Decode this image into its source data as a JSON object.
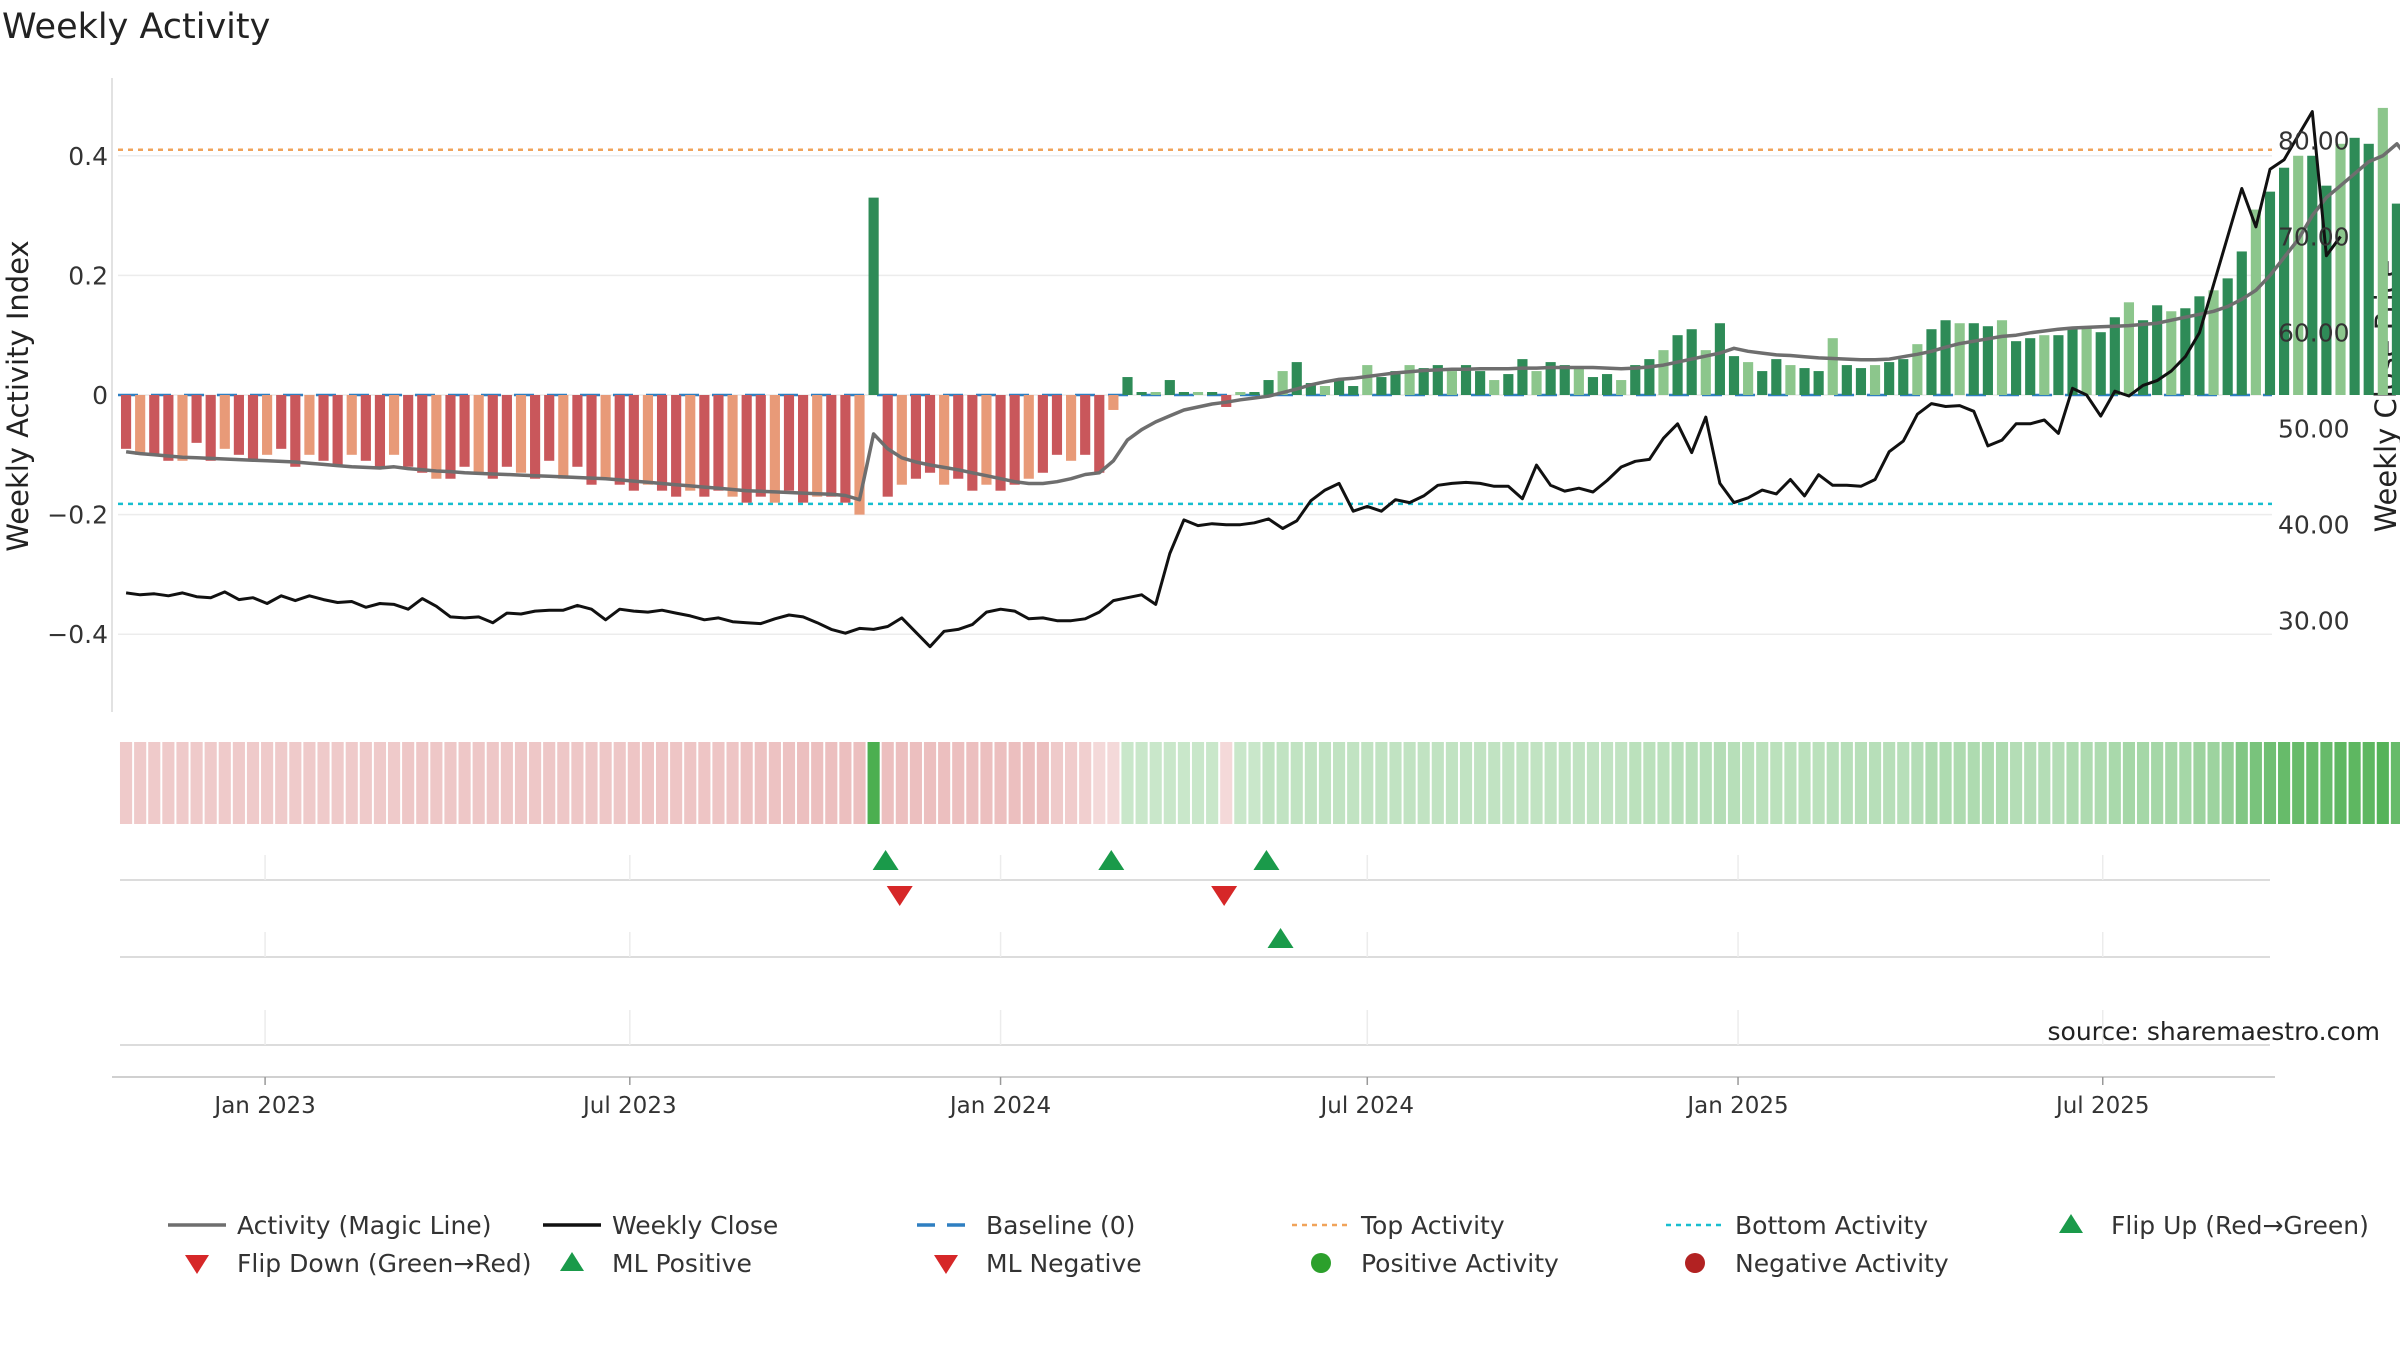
{
  "chart_data": {
    "type": "bar",
    "title": "Weekly Activity",
    "ylabel": "Weekly Activity Index",
    "y2label": "Weekly Close Price",
    "ylim": [
      -0.53,
      0.53
    ],
    "y2lim": [
      20.5,
      86.5
    ],
    "yticks": [
      {
        "v": 0.4,
        "label": "0.4"
      },
      {
        "v": 0.2,
        "label": "0.2"
      },
      {
        "v": 0,
        "label": "0"
      },
      {
        "v": -0.2,
        "label": "−0.2"
      },
      {
        "v": -0.4,
        "label": "−0.4"
      }
    ],
    "y2ticks": [
      {
        "v": 80,
        "label": "80.00"
      },
      {
        "v": 70,
        "label": "70.00"
      },
      {
        "v": 60,
        "label": "60.00"
      },
      {
        "v": 50,
        "label": "50.00"
      },
      {
        "v": 40,
        "label": "40.00"
      },
      {
        "v": 30,
        "label": "30.00"
      }
    ],
    "xlim": [
      "2022-10-20",
      "2025-09-23"
    ],
    "xticks": [
      {
        "date": "2023-01-01",
        "label": "Jan 2023"
      },
      {
        "date": "2023-07-01",
        "label": "Jul 2023"
      },
      {
        "date": "2024-01-01",
        "label": "Jan 2024"
      },
      {
        "date": "2024-07-01",
        "label": "Jul 2024"
      },
      {
        "date": "2025-01-01",
        "label": "Jan 2025"
      },
      {
        "date": "2025-07-01",
        "label": "Jul 2025"
      }
    ],
    "start_date": "2022-10-24",
    "top_activity": 0.41,
    "bottom_activity": -0.182,
    "baseline": 0,
    "source": "source: sharemaestro.com",
    "activity": [
      -0.09,
      -0.1,
      -0.1,
      -0.11,
      -0.11,
      -0.08,
      -0.11,
      -0.09,
      -0.1,
      -0.11,
      -0.1,
      -0.09,
      -0.12,
      -0.1,
      -0.11,
      -0.12,
      -0.1,
      -0.11,
      -0.12,
      -0.1,
      -0.12,
      -0.13,
      -0.14,
      -0.14,
      -0.12,
      -0.13,
      -0.14,
      -0.12,
      -0.13,
      -0.14,
      -0.11,
      -0.14,
      -0.12,
      -0.15,
      -0.14,
      -0.15,
      -0.16,
      -0.15,
      -0.16,
      -0.17,
      -0.16,
      -0.17,
      -0.16,
      -0.17,
      -0.18,
      -0.17,
      -0.18,
      -0.16,
      -0.18,
      -0.17,
      -0.17,
      -0.18,
      -0.2,
      0.33,
      -0.17,
      -0.15,
      -0.14,
      -0.13,
      -0.15,
      -0.14,
      -0.16,
      -0.15,
      -0.16,
      -0.15,
      -0.14,
      -0.13,
      -0.1,
      -0.11,
      -0.1,
      -0.13,
      -0.025,
      0.03,
      0.005,
      0.005,
      0.025,
      0.005,
      0.005,
      0.005,
      -0.02,
      0.005,
      0.005,
      0.025,
      0.04,
      0.055,
      0.02,
      0.015,
      0.025,
      0.015,
      0.05,
      0.03,
      0.04,
      0.05,
      0.045,
      0.05,
      0.04,
      0.05,
      0.04,
      0.025,
      0.035,
      0.06,
      0.04,
      0.055,
      0.05,
      0.045,
      0.03,
      0.035,
      0.025,
      0.05,
      0.06,
      0.075,
      0.1,
      0.11,
      0.075,
      0.12,
      0.065,
      0.055,
      0.04,
      0.06,
      0.05,
      0.045,
      0.04,
      0.095,
      0.05,
      0.045,
      0.05,
      0.055,
      0.06,
      0.085,
      0.11,
      0.125,
      0.12,
      0.12,
      0.115,
      0.125,
      0.09,
      0.095,
      0.1,
      0.1,
      0.11,
      0.115,
      0.105,
      0.13,
      0.155,
      0.125,
      0.15,
      0.14,
      0.145,
      0.165,
      0.175,
      0.195,
      0.24,
      0.31,
      0.34,
      0.38,
      0.4,
      0.4,
      0.35,
      0.42,
      0.43,
      0.42,
      0.48,
      0.32,
      0.34
    ],
    "magic_line": [
      -0.095,
      -0.098,
      -0.1,
      -0.102,
      -0.104,
      -0.105,
      -0.106,
      -0.107,
      -0.108,
      -0.109,
      -0.11,
      -0.111,
      -0.112,
      -0.114,
      -0.116,
      -0.118,
      -0.12,
      -0.121,
      -0.122,
      -0.12,
      -0.123,
      -0.125,
      -0.127,
      -0.128,
      -0.13,
      -0.131,
      -0.132,
      -0.133,
      -0.134,
      -0.135,
      -0.136,
      -0.137,
      -0.138,
      -0.139,
      -0.14,
      -0.142,
      -0.144,
      -0.146,
      -0.148,
      -0.15,
      -0.152,
      -0.154,
      -0.156,
      -0.158,
      -0.16,
      -0.161,
      -0.162,
      -0.163,
      -0.164,
      -0.165,
      -0.166,
      -0.168,
      -0.175,
      -0.065,
      -0.09,
      -0.105,
      -0.112,
      -0.117,
      -0.121,
      -0.125,
      -0.13,
      -0.135,
      -0.14,
      -0.145,
      -0.148,
      -0.148,
      -0.145,
      -0.14,
      -0.133,
      -0.13,
      -0.11,
      -0.075,
      -0.058,
      -0.045,
      -0.035,
      -0.025,
      -0.02,
      -0.015,
      -0.012,
      -0.008,
      -0.005,
      -0.002,
      0.004,
      0.01,
      0.017,
      0.022,
      0.026,
      0.028,
      0.031,
      0.034,
      0.037,
      0.039,
      0.041,
      0.042,
      0.043,
      0.043,
      0.044,
      0.044,
      0.044,
      0.045,
      0.045,
      0.046,
      0.046,
      0.046,
      0.046,
      0.045,
      0.044,
      0.045,
      0.047,
      0.05,
      0.055,
      0.06,
      0.065,
      0.07,
      0.078,
      0.073,
      0.07,
      0.067,
      0.066,
      0.064,
      0.062,
      0.061,
      0.06,
      0.059,
      0.059,
      0.06,
      0.064,
      0.068,
      0.073,
      0.08,
      0.086,
      0.09,
      0.094,
      0.098,
      0.1,
      0.104,
      0.107,
      0.11,
      0.112,
      0.113,
      0.114,
      0.115,
      0.116,
      0.118,
      0.12,
      0.125,
      0.13,
      0.135,
      0.14,
      0.148,
      0.16,
      0.175,
      0.2,
      0.23,
      0.26,
      0.3,
      0.33,
      0.35,
      0.37,
      0.39,
      0.4,
      0.42,
      0.39,
      0.37
    ],
    "weekly_close": [
      32.9,
      32.7,
      32.8,
      32.6,
      32.9,
      32.5,
      32.4,
      33.0,
      32.2,
      32.4,
      31.8,
      32.6,
      32.1,
      32.6,
      32.2,
      31.9,
      32.0,
      31.4,
      31.8,
      31.7,
      31.2,
      32.3,
      31.5,
      30.4,
      30.3,
      30.4,
      29.8,
      30.8,
      30.7,
      31.0,
      31.1,
      31.1,
      31.6,
      31.2,
      30.1,
      31.2,
      31.0,
      30.9,
      31.1,
      30.8,
      30.5,
      30.1,
      30.3,
      29.9,
      29.8,
      29.7,
      30.2,
      30.6,
      30.4,
      29.8,
      29.1,
      28.7,
      29.2,
      29.1,
      29.4,
      30.3,
      28.8,
      27.3,
      28.9,
      29.1,
      29.6,
      30.9,
      31.2,
      31.0,
      30.2,
      30.3,
      30.0,
      30.0,
      30.2,
      30.9,
      32.1,
      32.4,
      32.7,
      31.7,
      37.0,
      40.5,
      39.9,
      40.1,
      40.0,
      40.0,
      40.2,
      40.6,
      39.6,
      40.4,
      42.5,
      43.6,
      44.3,
      41.4,
      41.9,
      41.4,
      42.6,
      42.3,
      43.0,
      44.1,
      44.3,
      44.4,
      44.3,
      44.0,
      44.0,
      42.7,
      46.2,
      44.1,
      43.5,
      43.8,
      43.4,
      44.6,
      46.0,
      46.6,
      46.8,
      49.0,
      50.5,
      47.5,
      51.2,
      44.3,
      42.3,
      42.8,
      43.6,
      43.2,
      44.7,
      43.0,
      45.2,
      44.1,
      44.1,
      44.0,
      44.7,
      47.6,
      48.7,
      51.5,
      52.6,
      52.3,
      52.4,
      51.8,
      48.2,
      48.8,
      50.5,
      50.5,
      50.9,
      49.5,
      54.2,
      53.5,
      51.3,
      53.9,
      53.4,
      54.5,
      55.0,
      56.0,
      57.5,
      60.0,
      65.0,
      70.0,
      75.0,
      71.0,
      77.0,
      78.0,
      80.5,
      83.0,
      68.0,
      70.0
    ],
    "tint_strength": [
      0.42,
      0.42,
      0.42,
      0.42,
      0.42,
      0.42,
      0.42,
      0.42,
      0.42,
      0.42,
      0.42,
      0.42,
      0.42,
      0.42,
      0.42,
      0.42,
      0.42,
      0.42,
      0.42,
      0.42,
      0.44,
      0.44,
      0.44,
      0.44,
      0.44,
      0.44,
      0.44,
      0.44,
      0.44,
      0.44,
      0.44,
      0.44,
      0.44,
      0.44,
      0.44,
      0.44,
      0.46,
      0.46,
      0.46,
      0.46,
      0.46,
      0.46,
      0.46,
      0.46,
      0.48,
      0.48,
      0.48,
      0.48,
      0.5,
      0.5,
      0.5,
      0.5,
      0.5,
      1.0,
      0.5,
      0.5,
      0.5,
      0.5,
      0.5,
      0.5,
      0.5,
      0.5,
      0.5,
      0.5,
      0.5,
      0.5,
      0.42,
      0.4,
      0.38,
      0.3,
      0.3,
      0.3,
      0.3,
      0.3,
      0.3,
      0.3,
      0.3,
      0.3,
      0.3,
      0.3,
      0.3,
      0.35,
      0.35,
      0.35,
      0.35,
      0.35,
      0.35,
      0.35,
      0.35,
      0.35,
      0.35,
      0.35,
      0.35,
      0.35,
      0.35,
      0.35,
      0.35,
      0.35,
      0.35,
      0.35,
      0.35,
      0.35,
      0.35,
      0.35,
      0.35,
      0.35,
      0.35,
      0.38,
      0.38,
      0.38,
      0.4,
      0.4,
      0.4,
      0.42,
      0.4,
      0.38,
      0.38,
      0.38,
      0.38,
      0.38,
      0.38,
      0.4,
      0.4,
      0.4,
      0.4,
      0.4,
      0.4,
      0.42,
      0.45,
      0.45,
      0.45,
      0.45,
      0.45,
      0.45,
      0.42,
      0.42,
      0.42,
      0.42,
      0.45,
      0.45,
      0.45,
      0.48,
      0.5,
      0.5,
      0.5,
      0.5,
      0.5,
      0.55,
      0.55,
      0.6,
      0.7,
      0.75,
      0.8,
      0.85,
      0.85,
      0.85,
      0.85,
      0.9,
      0.9,
      0.9,
      0.95,
      0.85,
      0.8
    ],
    "flip_up_weeks": [
      53,
      69,
      80
    ],
    "flip_down_weeks": [
      54,
      77
    ],
    "ml_positive_weeks": [
      81
    ],
    "colors": {
      "strong_green": "#2e8b57",
      "light_green": "#8cc68c",
      "strong_red": "#c9575b",
      "light_red": "#e89a78",
      "magic_line": "#6e6e6e",
      "weekly_close": "#111111",
      "baseline": "#2f7fc1",
      "top_activity": "#f0a35a",
      "bottom_activity": "#17becf",
      "flip_up": "#1a9a4a",
      "flip_down": "#d62728",
      "strip_green": "#4caf50",
      "strip_red": "#d98080",
      "positive_dot": "#2ca02c",
      "negative_dot": "#b22222"
    },
    "legend": [
      {
        "label": "Activity (Magic Line)",
        "symbol": "line",
        "color": "#6e6e6e"
      },
      {
        "label": "Weekly Close",
        "symbol": "line",
        "color": "#111111"
      },
      {
        "label": "Baseline (0)",
        "symbol": "dash",
        "color": "#2f7fc1"
      },
      {
        "label": "Top Activity",
        "symbol": "dot-line",
        "color": "#f0a35a"
      },
      {
        "label": "Bottom Activity",
        "symbol": "dot-line",
        "color": "#17becf"
      },
      {
        "label": "Flip Up (Red→Green)",
        "symbol": "tri-up",
        "color": "#1a9a4a"
      },
      {
        "label": "Flip Down (Green→Red)",
        "symbol": "tri-down",
        "color": "#d62728"
      },
      {
        "label": "ML Positive",
        "symbol": "tri-up",
        "color": "#1a9a4a"
      },
      {
        "label": "ML Negative",
        "symbol": "tri-down",
        "color": "#d62728"
      },
      {
        "label": "Positive Activity",
        "symbol": "circle",
        "color": "#2ca02c"
      },
      {
        "label": "Negative Activity",
        "symbol": "circle",
        "color": "#b22222"
      }
    ]
  }
}
